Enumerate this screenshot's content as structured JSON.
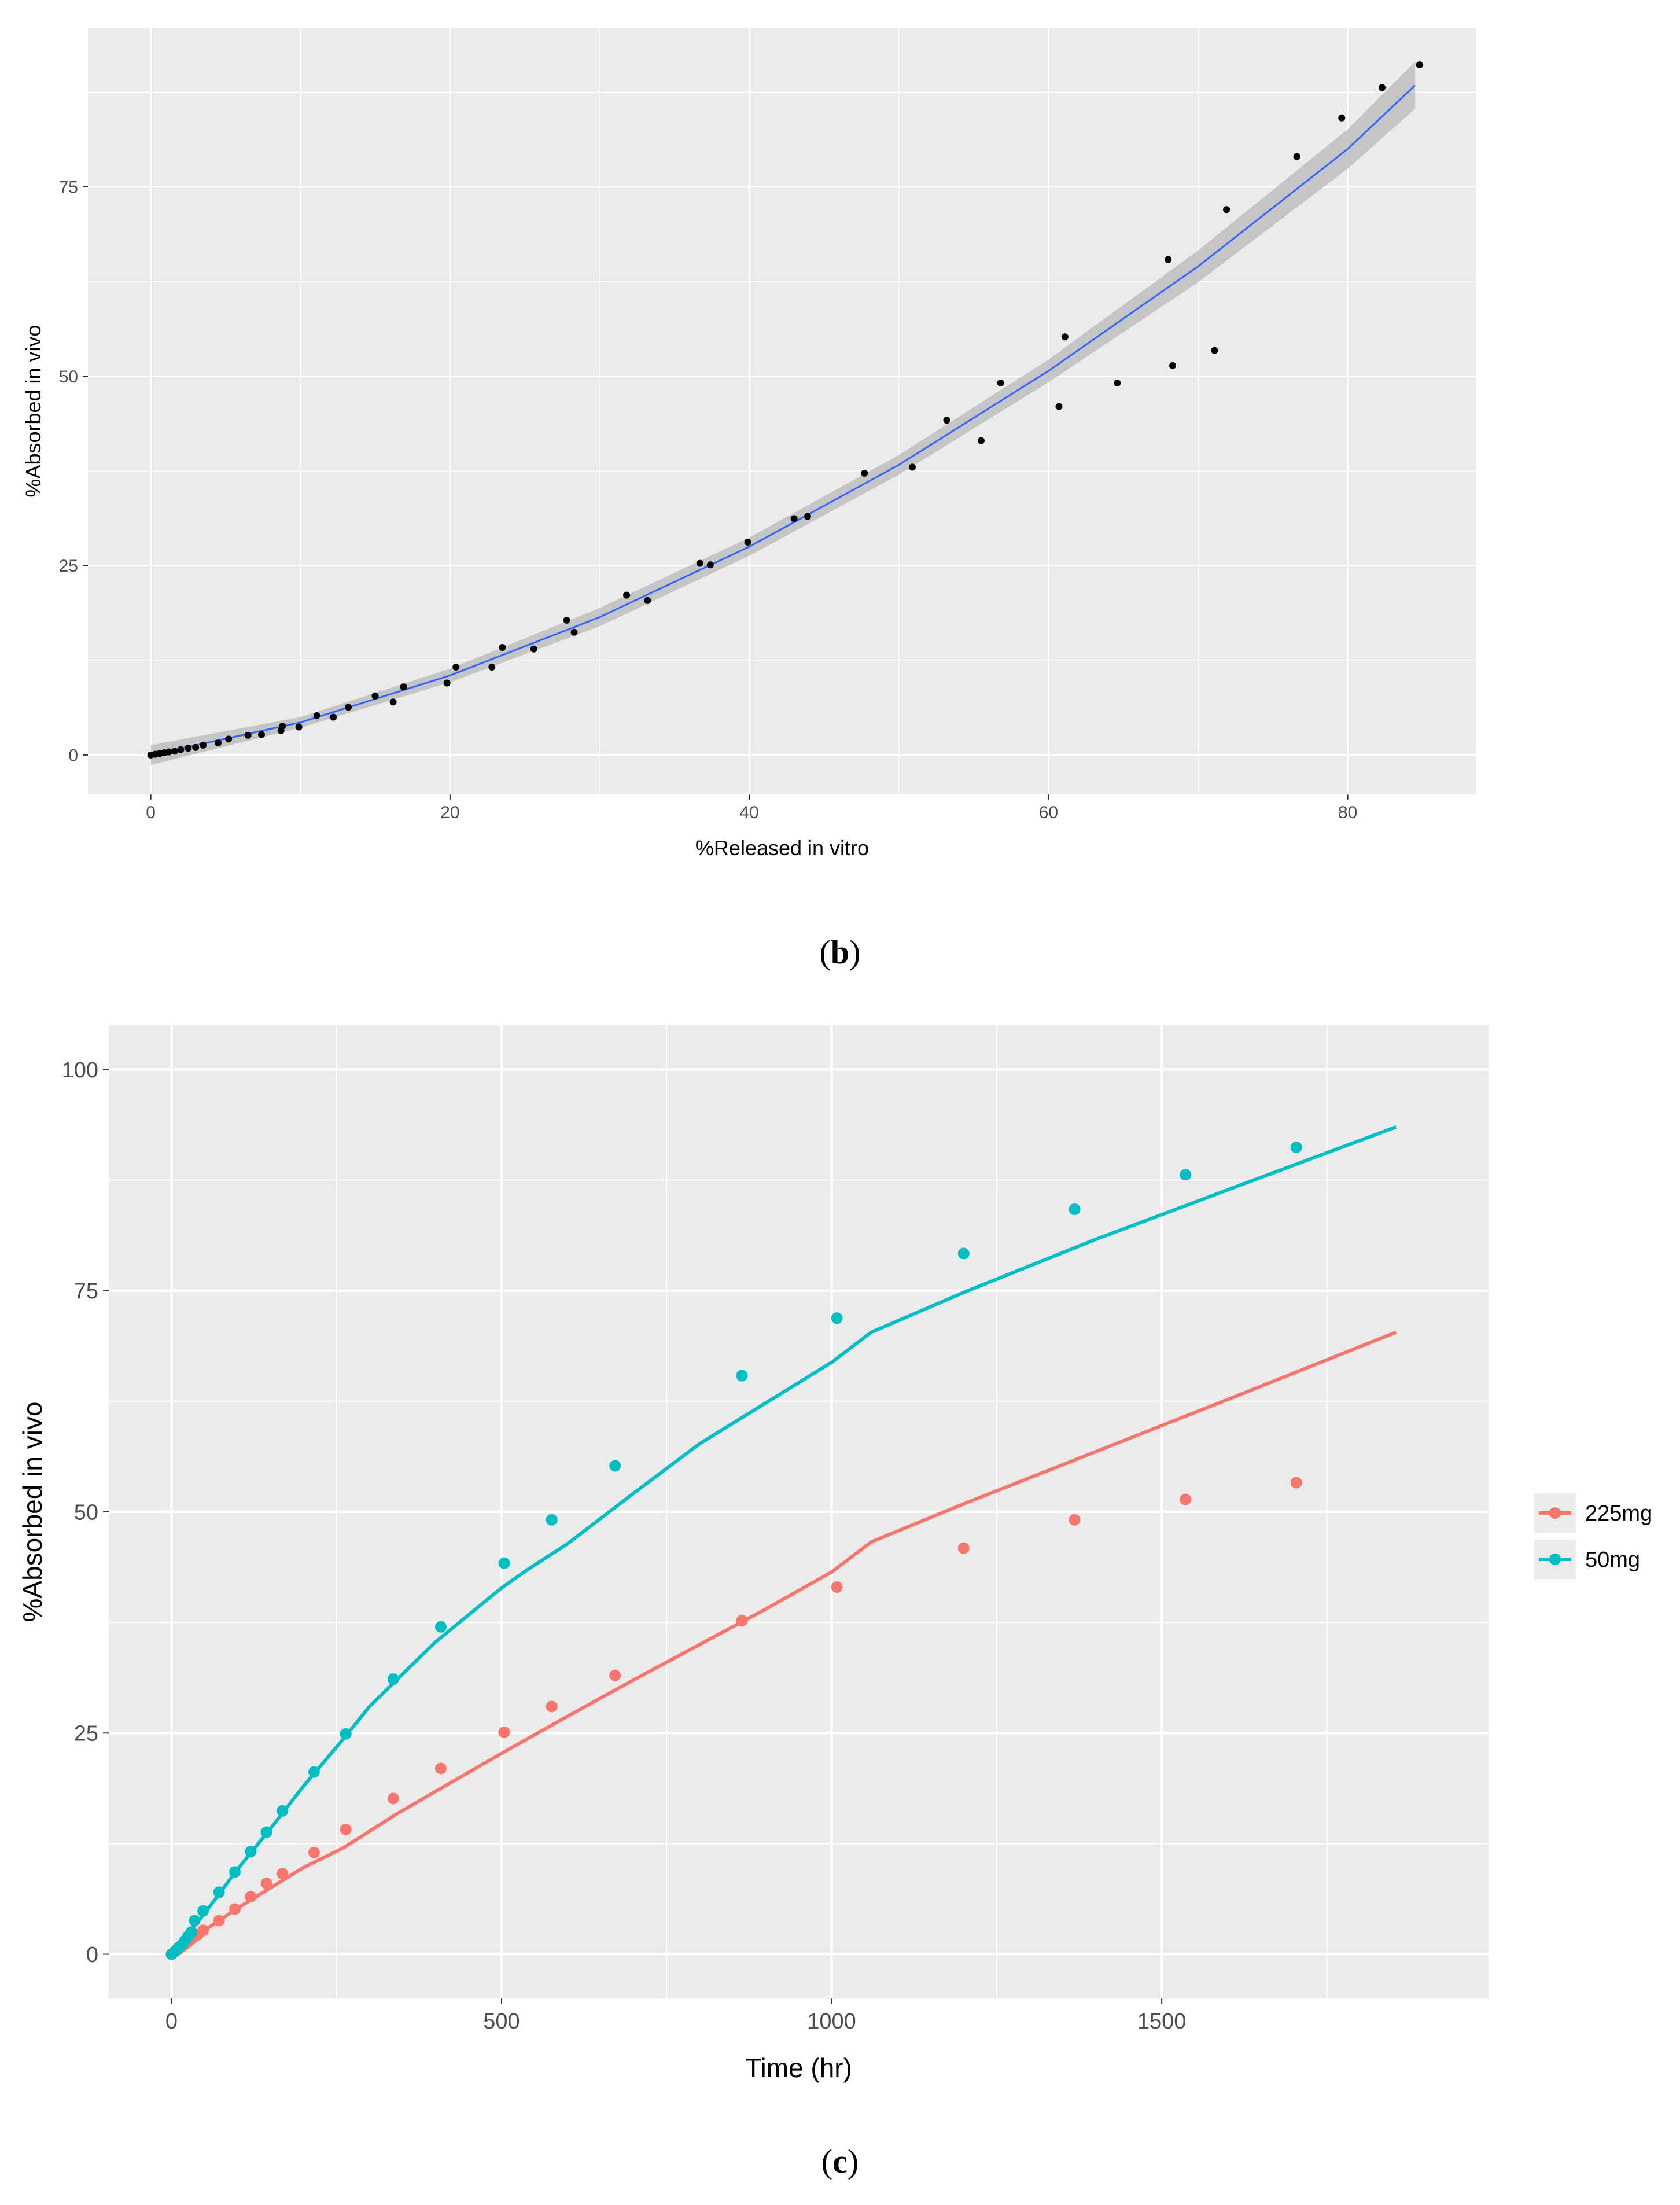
{
  "colors": {
    "panel_bg": "#EBEBEB",
    "grid": "#FFFFFF",
    "points_b": "#000000",
    "smooth_line": "#3366FF",
    "ribbon": "#BEBEBE",
    "series_225": "#F8766D",
    "series_50": "#00BFC4"
  },
  "chart_data": [
    {
      "panel": "(b)",
      "panel_label": {
        "open": "(",
        "letter": "b",
        "close": ")"
      },
      "type": "scatter",
      "title": "",
      "xlabel": "%Released in vitro",
      "ylabel": "%Absorbed in vivo",
      "xlim": [
        -4.2,
        88.6
      ],
      "ylim": [
        -5.2,
        96.0
      ],
      "xticks": [
        0,
        20,
        40,
        60,
        80
      ],
      "xtick_labels": [
        "0",
        "20",
        "40",
        "60",
        "80"
      ],
      "yticks": [
        0,
        25,
        50,
        75
      ],
      "ytick_labels": [
        "0",
        "25",
        "50",
        "75"
      ],
      "grid": true,
      "points": [
        [
          0,
          0
        ],
        [
          0.3,
          0.1
        ],
        [
          0.6,
          0.2
        ],
        [
          0.9,
          0.3
        ],
        [
          1.2,
          0.4
        ],
        [
          1.6,
          0.5
        ],
        [
          2.0,
          0.7
        ],
        [
          2.5,
          0.9
        ],
        [
          3.0,
          1.0
        ],
        [
          3.5,
          1.3
        ],
        [
          4.5,
          1.6
        ],
        [
          5.2,
          2.1
        ],
        [
          6.5,
          2.6
        ],
        [
          7.4,
          2.7
        ],
        [
          8.7,
          3.2
        ],
        [
          8.8,
          3.8
        ],
        [
          9.9,
          3.7
        ],
        [
          11.1,
          5.2
        ],
        [
          12.2,
          5.0
        ],
        [
          13.2,
          6.3
        ],
        [
          15.0,
          7.8
        ],
        [
          16.2,
          7.0
        ],
        [
          16.9,
          9.0
        ],
        [
          19.8,
          9.5
        ],
        [
          20.4,
          11.6
        ],
        [
          22.8,
          11.6
        ],
        [
          23.5,
          14.2
        ],
        [
          25.6,
          14.0
        ],
        [
          27.8,
          17.8
        ],
        [
          28.3,
          16.2
        ],
        [
          31.8,
          21.1
        ],
        [
          33.2,
          20.4
        ],
        [
          36.7,
          25.3
        ],
        [
          37.4,
          25.1
        ],
        [
          39.9,
          28.1
        ],
        [
          43.0,
          31.2
        ],
        [
          43.9,
          31.5
        ],
        [
          47.7,
          37.2
        ],
        [
          50.9,
          38.0
        ],
        [
          53.2,
          44.2
        ],
        [
          55.5,
          41.5
        ],
        [
          56.8,
          49.1
        ],
        [
          60.7,
          46.0
        ],
        [
          61.1,
          55.2
        ],
        [
          64.6,
          49.1
        ],
        [
          68.0,
          65.4
        ],
        [
          68.3,
          51.4
        ],
        [
          71.1,
          53.4
        ],
        [
          71.9,
          72.0
        ],
        [
          76.6,
          79.0
        ],
        [
          79.6,
          84.1
        ],
        [
          82.3,
          88.1
        ],
        [
          84.8,
          91.1
        ]
      ],
      "smooth": {
        "x": [
          0,
          10,
          20,
          30,
          40,
          50,
          60,
          70,
          80,
          84.5
        ],
        "y": [
          0.0,
          4.3,
          10.5,
          18.2,
          27.5,
          38.3,
          50.7,
          64.5,
          80.0,
          88.4
        ],
        "band_halfwidth": [
          1.3,
          0.7,
          0.9,
          1.2,
          1.2,
          1.3,
          1.5,
          2.1,
          2.6,
          3.1
        ]
      }
    },
    {
      "panel": "(c)",
      "panel_label": {
        "open": "(",
        "letter": "c",
        "close": ")"
      },
      "type": "line",
      "title": "",
      "xlabel": "Time (hr)",
      "ylabel": "%Absorbed in vivo",
      "xlim": [
        -95,
        1995
      ],
      "ylim": [
        -5,
        105
      ],
      "xticks": [
        0,
        500,
        1000,
        1500
      ],
      "xtick_labels": [
        "0",
        "500",
        "1000",
        "1500"
      ],
      "yticks": [
        0,
        25,
        50,
        75,
        100
      ],
      "ytick_labels": [
        "0",
        "25",
        "50",
        "75",
        "100"
      ],
      "grid": true,
      "legend_position": "right",
      "series": [
        {
          "name": "225mg",
          "observed": {
            "x": [
              0,
              5,
              10,
              15,
              20,
              25,
              30,
              35,
              40,
              48,
              72,
              96,
              120,
              144,
              168,
              216,
              264,
              336,
              408,
              504,
              576,
              672,
              864,
              1008,
              1200,
              1368,
              1536,
              1704
            ],
            "y": [
              0,
              0.3,
              0.5,
              0.8,
              1.1,
              1.4,
              1.7,
              2.0,
              2.2,
              2.7,
              3.8,
              5.1,
              6.5,
              8.0,
              9.1,
              11.5,
              14.1,
              17.6,
              21.0,
              25.1,
              28.0,
              31.5,
              37.7,
              41.5,
              45.9,
              49.1,
              51.4,
              53.3
            ]
          },
          "predicted": {
            "x": [
              0,
              50,
              100,
              150,
              200,
              260,
              340,
              400,
              500,
              600,
              700,
              800,
              900,
              1000,
              1060,
              1200,
              1400,
              1600,
              1855
            ],
            "y": [
              0,
              2.7,
              5.2,
              7.5,
              9.8,
              12.0,
              15.8,
              18.4,
              22.7,
              26.9,
              31.0,
              35.0,
              39.0,
              43.2,
              46.6,
              50.9,
              56.8,
              62.7,
              70.3
            ]
          }
        },
        {
          "name": "50mg",
          "observed": {
            "x": [
              0,
              5,
              10,
              15,
              20,
              25,
              30,
              35,
              48,
              72,
              96,
              120,
              144,
              168,
              216,
              264,
              336,
              408,
              504,
              576,
              672,
              864,
              1008,
              1200,
              1368,
              1536,
              1704
            ],
            "y": [
              0,
              0.3,
              0.7,
              1.0,
              1.5,
              2.0,
              2.5,
              3.8,
              4.9,
              7.0,
              9.3,
              11.6,
              13.8,
              16.2,
              20.6,
              24.9,
              31.1,
              37.0,
              44.2,
              49.1,
              55.2,
              65.4,
              71.9,
              79.2,
              84.2,
              88.1,
              91.2
            ]
          },
          "predicted": {
            "x": [
              0,
              50,
              100,
              150,
              200,
              260,
              300,
              400,
              500,
              540,
              600,
              700,
              800,
              900,
              1000,
              1060,
              1200,
              1400,
              1600,
              1855
            ],
            "y": [
              0,
              4.6,
              9.6,
              14.2,
              19.0,
              24.3,
              28.0,
              35.3,
              41.4,
              43.5,
              46.4,
              52.1,
              57.7,
              62.3,
              66.9,
              70.3,
              74.8,
              80.8,
              86.4,
              93.5
            ]
          }
        }
      ]
    }
  ]
}
